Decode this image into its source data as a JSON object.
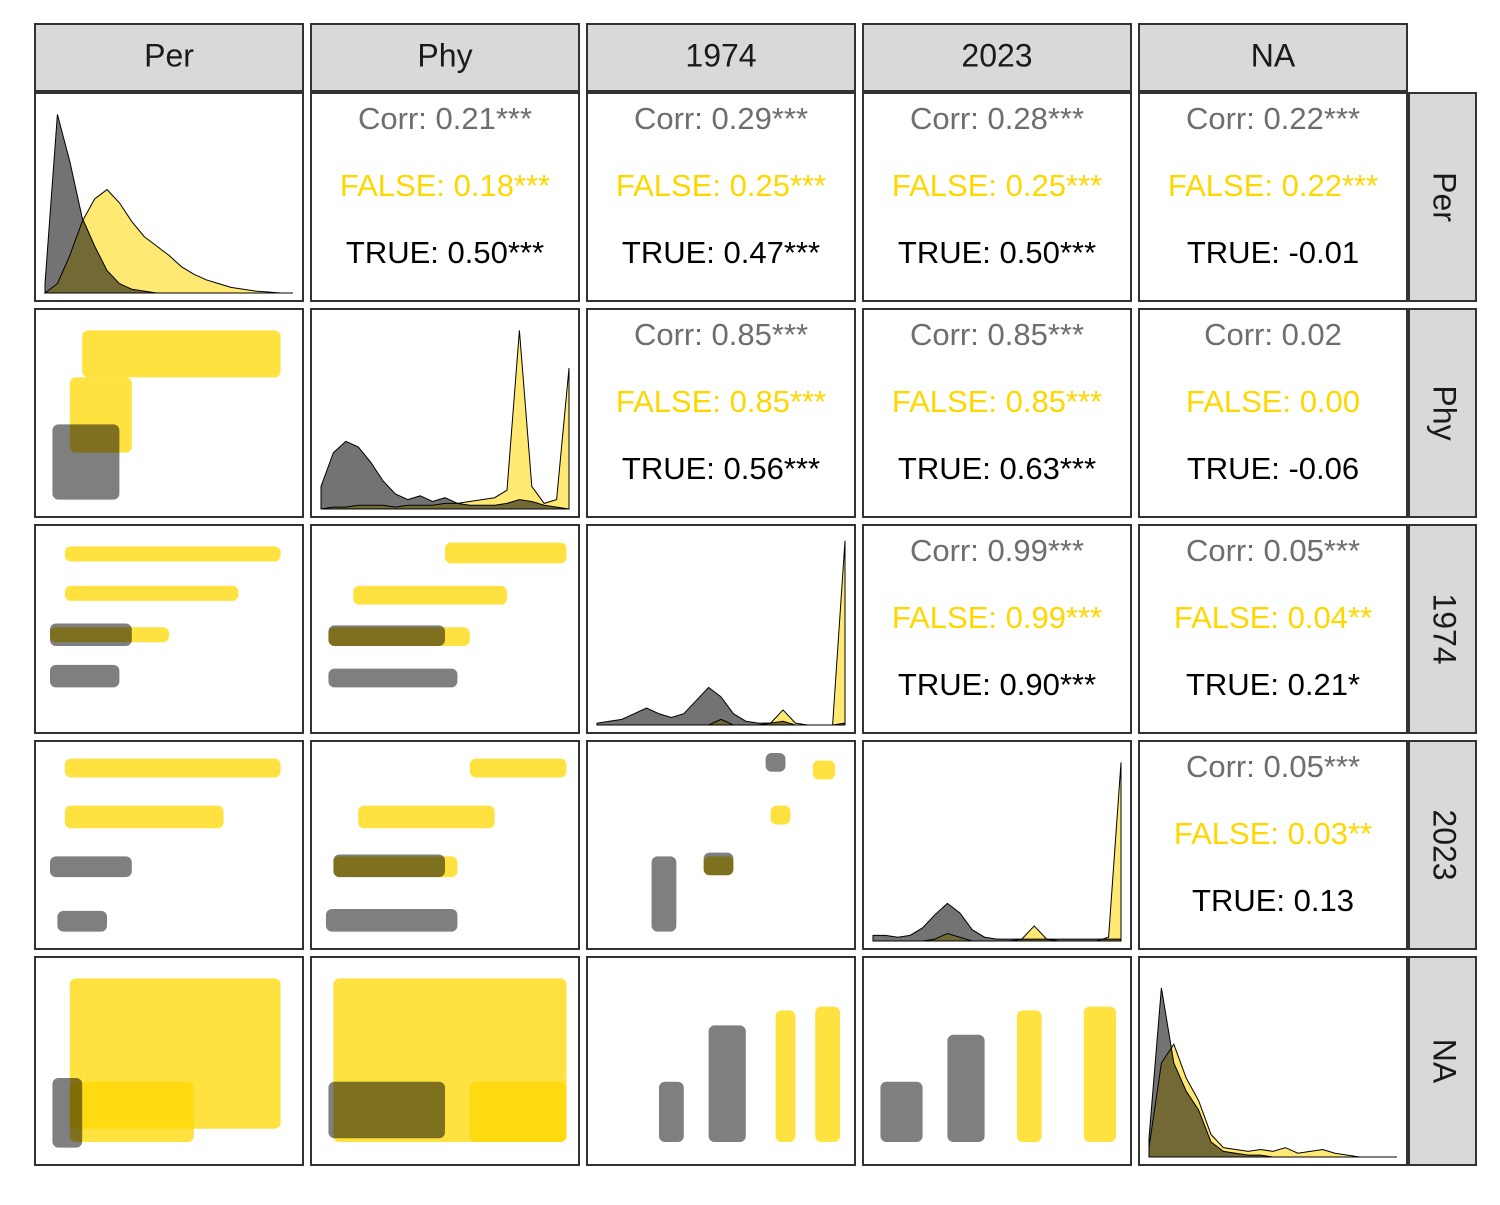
{
  "variables": [
    "Per",
    "Phy",
    "1974",
    "2023",
    "NA"
  ],
  "colors": {
    "corr": "#6e6e6e",
    "false": "#FFD700",
    "true": "#000000"
  },
  "upper": [
    [
      [
        "Corr: 0.21***",
        "FALSE: 0.18***",
        "TRUE: 0.50***"
      ],
      [
        "Corr: 0.29***",
        "FALSE: 0.25***",
        "TRUE: 0.47***"
      ],
      [
        "Corr: 0.28***",
        "FALSE: 0.25***",
        "TRUE: 0.50***"
      ],
      [
        "Corr: 0.22***",
        "FALSE: 0.22***",
        "TRUE: -0.01"
      ]
    ],
    [
      [
        "Corr: 0.85***",
        "FALSE: 0.85***",
        "TRUE: 0.56***"
      ],
      [
        "Corr: 0.85***",
        "FALSE: 0.85***",
        "TRUE: 0.63***"
      ],
      [
        "Corr: 0.02",
        "FALSE: 0.00",
        "TRUE: -0.06"
      ]
    ],
    [
      [
        "Corr: 0.99***",
        "FALSE: 0.99***",
        "TRUE: 0.90***"
      ],
      [
        "Corr: 0.05***",
        "FALSE: 0.04**",
        "TRUE: 0.21*"
      ]
    ],
    [
      [
        "Corr: 0.05***",
        "FALSE: 0.03**",
        "TRUE: 0.13"
      ]
    ]
  ],
  "diagonal": [
    {
      "false": [
        0,
        0.05,
        0.2,
        0.38,
        0.5,
        0.55,
        0.48,
        0.38,
        0.3,
        0.25,
        0.2,
        0.14,
        0.1,
        0.07,
        0.05,
        0.03,
        0.02,
        0.01,
        0.005,
        0,
        0
      ],
      "true": [
        0.05,
        0.95,
        0.7,
        0.4,
        0.25,
        0.12,
        0.05,
        0.02,
        0.01,
        0,
        0,
        0,
        0,
        0,
        0,
        0,
        0,
        0,
        0,
        0,
        0
      ]
    },
    {
      "false": [
        0,
        0.01,
        0.01,
        0.02,
        0.02,
        0.02,
        0.01,
        0.02,
        0.02,
        0.02,
        0.03,
        0.03,
        0.04,
        0.05,
        0.06,
        0.1,
        0.95,
        0.12,
        0.03,
        0.05,
        0.75
      ],
      "true": [
        0.12,
        0.3,
        0.36,
        0.33,
        0.25,
        0.15,
        0.08,
        0.05,
        0.07,
        0.04,
        0.06,
        0.03,
        0.02,
        0.02,
        0.02,
        0.03,
        0.05,
        0.04,
        0.02,
        0.01,
        0
      ]
    },
    {
      "false": [
        0,
        0,
        0,
        0,
        0,
        0,
        0,
        0,
        0,
        0,
        0.03,
        0,
        0,
        0,
        0.01,
        0.08,
        0.01,
        0,
        0,
        0,
        0.98
      ],
      "true": [
        0.01,
        0.02,
        0.03,
        0.06,
        0.09,
        0.06,
        0.04,
        0.06,
        0.13,
        0.2,
        0.15,
        0.06,
        0.02,
        0.01,
        0.01,
        0.02,
        0,
        0,
        0,
        0,
        0.01
      ]
    },
    {
      "false": [
        0,
        0,
        0,
        0,
        0,
        0.01,
        0.04,
        0.02,
        0,
        0,
        0,
        0,
        0.01,
        0.08,
        0.01,
        0,
        0,
        0,
        0,
        0.02,
        0.95
      ],
      "true": [
        0.03,
        0.03,
        0.02,
        0.03,
        0.07,
        0.14,
        0.2,
        0.15,
        0.06,
        0.02,
        0.01,
        0.01,
        0.01,
        0.01,
        0.01,
        0.01,
        0.01,
        0.01,
        0.01,
        0.01,
        0.01
      ]
    },
    {
      "false": [
        0.05,
        0.5,
        0.6,
        0.42,
        0.3,
        0.12,
        0.05,
        0.04,
        0.03,
        0.04,
        0.03,
        0.05,
        0.02,
        0.03,
        0.04,
        0.02,
        0.01,
        0,
        0,
        0,
        0
      ],
      "true": [
        0.1,
        0.9,
        0.5,
        0.35,
        0.25,
        0.08,
        0.03,
        0.02,
        0.01,
        0.01,
        0,
        0,
        0,
        0,
        0,
        0,
        0,
        0,
        0,
        0,
        0
      ]
    }
  ],
  "lower": [
    [
      {
        "false": [
          [
            0.15,
            0.95,
            0.7,
            0.95
          ],
          [
            0.1,
            0.35,
            0.3,
            0.7
          ]
        ],
        "true": [
          [
            0.03,
            0.3,
            0.05,
            0.45
          ]
        ]
      }
    ],
    [
      {
        "false": [
          [
            0.08,
            0.95,
            0.87,
            0.95
          ],
          [
            0.08,
            0.78,
            0.66,
            0.74
          ],
          [
            0.02,
            0.5,
            0.44,
            0.52
          ]
        ],
        "true": [
          [
            0.02,
            0.35,
            0.42,
            0.54
          ],
          [
            0.02,
            0.3,
            0.2,
            0.32
          ]
        ]
      },
      {
        "false": [
          [
            0.5,
            0.99,
            0.86,
            0.97
          ],
          [
            0.13,
            0.75,
            0.64,
            0.74
          ],
          [
            0.03,
            0.6,
            0.42,
            0.52
          ]
        ],
        "true": [
          [
            0.03,
            0.5,
            0.42,
            0.53
          ],
          [
            0.03,
            0.55,
            0.2,
            0.3
          ]
        ]
      }
    ],
    [
      {
        "false": [
          [
            0.08,
            0.95,
            0.87,
            0.97
          ],
          [
            0.08,
            0.72,
            0.6,
            0.72
          ]
        ],
        "true": [
          [
            0.02,
            0.35,
            0.34,
            0.45
          ],
          [
            0.05,
            0.25,
            0.05,
            0.16
          ]
        ]
      },
      {
        "false": [
          [
            0.6,
            0.99,
            0.87,
            0.97
          ],
          [
            0.15,
            0.7,
            0.6,
            0.72
          ],
          [
            0.05,
            0.55,
            0.34,
            0.45
          ]
        ],
        "true": [
          [
            0.05,
            0.5,
            0.34,
            0.46
          ],
          [
            0.02,
            0.55,
            0.05,
            0.17
          ]
        ]
      },
      {
        "false": [
          [
            0.87,
            0.96,
            0.86,
            0.96
          ],
          [
            0.7,
            0.78,
            0.62,
            0.72
          ],
          [
            0.43,
            0.55,
            0.35,
            0.45
          ]
        ],
        "true": [
          [
            0.22,
            0.32,
            0.05,
            0.45
          ],
          [
            0.43,
            0.55,
            0.35,
            0.47
          ],
          [
            0.68,
            0.76,
            0.9,
            1
          ]
        ]
      }
    ],
    [
      {
        "false": [
          [
            0.1,
            0.95,
            0.15,
            0.95
          ],
          [
            0.1,
            0.6,
            0.08,
            0.4
          ]
        ],
        "true": [
          [
            0.03,
            0.15,
            0.05,
            0.42
          ]
        ]
      },
      {
        "false": [
          [
            0.05,
            0.99,
            0.08,
            0.95
          ],
          [
            0.6,
            0.99,
            0.08,
            0.4
          ]
        ],
        "true": [
          [
            0.03,
            0.5,
            0.1,
            0.4
          ]
        ]
      },
      {
        "false": [
          [
            0.72,
            0.8,
            0.08,
            0.78
          ],
          [
            0.88,
            0.98,
            0.08,
            0.8
          ]
        ],
        "true": [
          [
            0.25,
            0.35,
            0.08,
            0.4
          ],
          [
            0.45,
            0.6,
            0.08,
            0.7
          ]
        ]
      },
      {
        "false": [
          [
            0.58,
            0.68,
            0.08,
            0.78
          ],
          [
            0.85,
            0.98,
            0.08,
            0.8
          ]
        ],
        "true": [
          [
            0.03,
            0.2,
            0.08,
            0.4
          ],
          [
            0.3,
            0.45,
            0.08,
            0.65
          ]
        ]
      }
    ]
  ]
}
